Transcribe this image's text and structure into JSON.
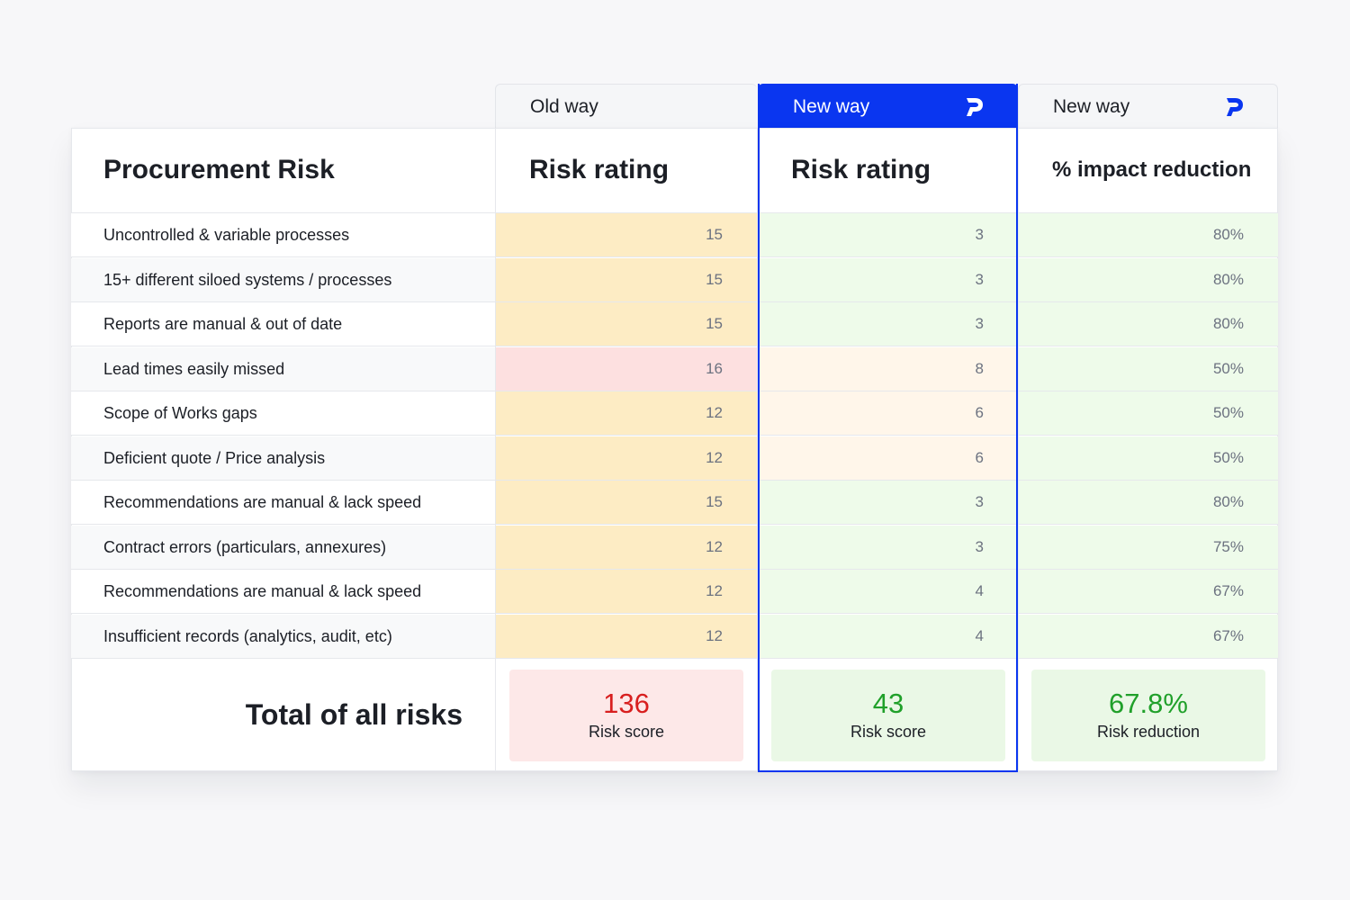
{
  "columns": {
    "old_tab": "Old way",
    "new_tab": "New way",
    "new_tab_2": "New way",
    "brand_logo": "p-logo-icon"
  },
  "headers": {
    "risk": "Procurement Risk",
    "old_rating": "Risk rating",
    "new_rating": "Risk rating",
    "reduction": "% impact reduction"
  },
  "rows": [
    {
      "label": "Uncontrolled & variable processes",
      "old": "15",
      "new": "3",
      "reduction": "80%"
    },
    {
      "label": "15+ different siloed systems / processes",
      "old": "15",
      "new": "3",
      "reduction": "80%"
    },
    {
      "label": "Reports are manual & out of date",
      "old": "15",
      "new": "3",
      "reduction": "80%"
    },
    {
      "label": "Lead times easily missed",
      "old": "16",
      "new": "8",
      "reduction": "50%"
    },
    {
      "label": "Scope of Works gaps",
      "old": "12",
      "new": "6",
      "reduction": "50%"
    },
    {
      "label": "Deficient quote / Price analysis",
      "old": "12",
      "new": "6",
      "reduction": "50%"
    },
    {
      "label": "Recommendations are manual & lack speed",
      "old": "15",
      "new": "3",
      "reduction": "80%"
    },
    {
      "label": "Contract errors (particulars, annexures)",
      "old": "12",
      "new": "3",
      "reduction": "75%"
    },
    {
      "label": "Recommendations are manual & lack speed",
      "old": "12",
      "new": "4",
      "reduction": "67%"
    },
    {
      "label": "Insufficient records (analytics, audit, etc)",
      "old": "12",
      "new": "4",
      "reduction": "67%"
    }
  ],
  "totals": {
    "label": "Total of all risks",
    "old_value": "136",
    "old_caption": "Risk score",
    "new_value": "43",
    "new_caption": "Risk score",
    "reduction_value": "67.8%",
    "reduction_caption": "Risk reduction"
  },
  "colors": {
    "brand_blue": "#0a36f0",
    "old_high": "#fde0e0",
    "old_med": "#fdecc4",
    "new_low": "#eefbea",
    "new_med": "#fff6ea",
    "total_red": "#d81f1f",
    "total_green": "#20a02a"
  }
}
